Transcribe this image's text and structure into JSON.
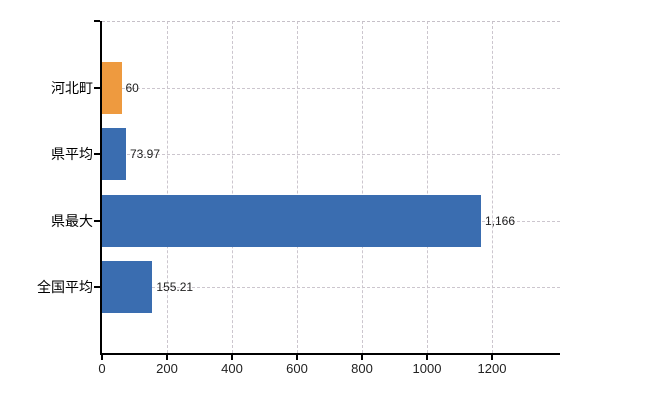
{
  "chart_data": {
    "type": "bar",
    "orientation": "horizontal",
    "title": "",
    "xlabel": "",
    "ylabel": "",
    "categories": [
      "河北町",
      "県平均",
      "県最大",
      "全国平均"
    ],
    "values": [
      60,
      73.97,
      1166,
      155.21
    ],
    "value_labels": [
      "60",
      "73.97",
      "1,166",
      "155.21"
    ],
    "bar_colors": [
      "#ee9a3f",
      "#3a6db0",
      "#3a6db0",
      "#3a6db0"
    ],
    "x_ticks": [
      0,
      200,
      400,
      600,
      800,
      1000,
      1200
    ],
    "x_tick_labels": [
      "0",
      "200",
      "400",
      "600",
      "800",
      "1000",
      "1200"
    ],
    "xlim": [
      0,
      1409
    ],
    "grid": "dashed",
    "legend": "none",
    "colors": {
      "highlight": "#ee9a3f",
      "default": "#3a6db0",
      "grid": "#ccc6ce",
      "axis": "#000000",
      "text": "#222222"
    }
  }
}
